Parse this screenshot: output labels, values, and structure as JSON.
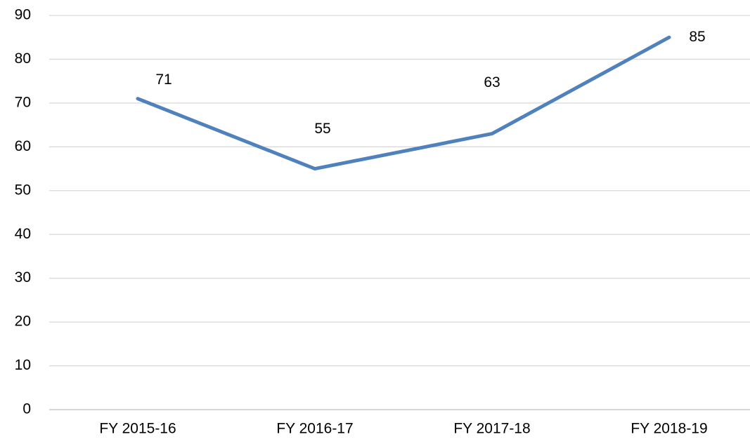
{
  "chart_data": {
    "type": "line",
    "categories": [
      "FY 2015-16",
      "FY 2016-17",
      "FY 2017-18",
      "FY 2018-19"
    ],
    "series": [
      {
        "color": "#4f81bd",
        "values": [
          71,
          55,
          63,
          85
        ]
      }
    ],
    "ylim": [
      0,
      90
    ],
    "yticks": [
      0,
      10,
      20,
      30,
      40,
      50,
      60,
      70,
      80,
      90
    ],
    "grid": true
  }
}
